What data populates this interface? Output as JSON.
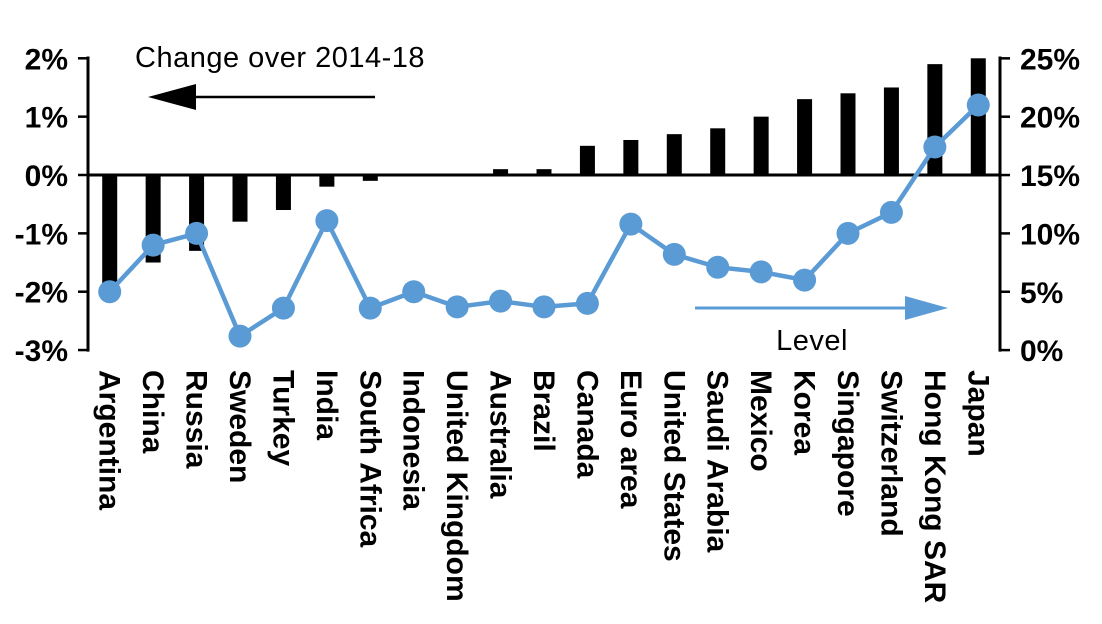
{
  "chart_data": {
    "type": "combo-bar-line",
    "title_annotation": "Change over 2014-18",
    "line_annotation": "Level",
    "background": "#FFFFFF",
    "grid": false,
    "legend": "none",
    "categories": [
      "Argentina",
      "China",
      "Russia",
      "Sweden",
      "Turkey",
      "India",
      "South Africa",
      "Indonesia",
      "United Kingdom",
      "Australia",
      "Brazil",
      "Canada",
      "Euro area",
      "United States",
      "Saudi Arabia",
      "Mexico",
      "Korea",
      "Singapore",
      "Switzerland",
      "Hong Kong SAR",
      "Japan"
    ],
    "series": [
      {
        "name": "Change over 2014-18",
        "type": "bar",
        "axis": "left",
        "color": "#000000",
        "values": [
          -2.0,
          -1.5,
          -1.3,
          -0.8,
          -0.6,
          -0.2,
          -0.1,
          0.0,
          0.0,
          0.1,
          0.1,
          0.5,
          0.6,
          0.7,
          0.8,
          1.0,
          1.3,
          1.4,
          1.5,
          1.9,
          2.0
        ]
      },
      {
        "name": "Level",
        "type": "line",
        "axis": "right",
        "color": "#5B9BD5",
        "values": [
          5.0,
          9.0,
          10.0,
          1.2,
          3.6,
          11.1,
          3.6,
          5.0,
          3.7,
          4.2,
          3.7,
          4.0,
          10.8,
          8.2,
          7.1,
          6.7,
          6.0,
          10.0,
          11.8,
          17.4,
          21.0
        ]
      }
    ],
    "left_axis": {
      "tick_labels": [
        "2%",
        "1%",
        "0%",
        "-1%",
        "-2%",
        "-3%"
      ],
      "tick_values": [
        2,
        1,
        0,
        -1,
        -2,
        -3
      ],
      "min": -3,
      "max": 2,
      "step": 1
    },
    "right_axis": {
      "tick_labels": [
        "25%",
        "20%",
        "15%",
        "10%",
        "5%",
        "0%"
      ],
      "tick_values": [
        25,
        20,
        15,
        10,
        5,
        0
      ],
      "min": 0,
      "max": 25,
      "step": 5
    },
    "annotations": [
      {
        "text": "Change over 2014-18",
        "arrow_direction": "left",
        "color": "#000000"
      },
      {
        "text": "Level",
        "arrow_direction": "right",
        "color": "#5B9BD5"
      }
    ]
  }
}
